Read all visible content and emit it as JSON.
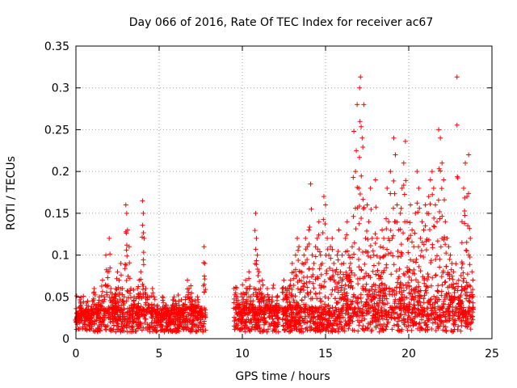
{
  "chart_data": {
    "type": "scatter",
    "title": "Day 066 of 2016, Rate Of TEC Index for receiver ac67",
    "xlabel": "GPS time / hours",
    "ylabel": "ROTI / TECUs",
    "xlim": [
      0,
      25
    ],
    "ylim": [
      0,
      0.35
    ],
    "xticks": [
      0,
      5,
      10,
      15,
      20,
      25
    ],
    "yticks": [
      0,
      0.05,
      0.1,
      0.15,
      0.2,
      0.25,
      0.3,
      0.35
    ],
    "grid": true,
    "marker": "+",
    "marker_color": "#ff0000",
    "series": [
      {
        "name": "ROTI",
        "x": [
          0.0,
          0.1,
          0.2,
          0.3,
          0.4,
          0.5,
          0.6,
          0.7,
          0.8,
          0.9,
          1.0,
          1.1,
          1.2,
          1.3,
          1.4,
          1.5,
          1.6,
          1.7,
          1.8,
          1.9,
          2.0,
          2.1,
          2.2,
          2.3,
          2.4,
          2.5,
          2.6,
          2.7,
          2.8,
          2.9,
          3.0,
          3.05,
          3.1,
          3.2,
          3.3,
          3.4,
          3.5,
          3.6,
          3.7,
          3.8,
          3.9,
          4.0,
          4.05,
          4.1,
          4.2,
          4.3,
          4.4,
          4.5,
          4.6,
          4.7,
          4.8,
          4.9,
          5.0,
          5.1,
          5.2,
          5.3,
          5.4,
          5.5,
          5.6,
          5.7,
          5.8,
          5.9,
          6.0,
          6.1,
          6.2,
          6.3,
          6.4,
          6.5,
          6.6,
          6.7,
          6.8,
          6.9,
          7.0,
          7.1,
          7.2,
          7.3,
          7.4,
          7.5,
          7.6,
          7.7,
          7.75,
          9.5,
          9.6,
          9.7,
          9.8,
          9.9,
          10.0,
          10.1,
          10.2,
          10.3,
          10.4,
          10.5,
          10.6,
          10.7,
          10.8,
          10.85,
          10.9,
          11.0,
          11.1,
          11.2,
          11.3,
          11.4,
          11.5,
          11.6,
          11.7,
          11.8,
          11.9,
          12.0,
          12.1,
          12.2,
          12.4,
          12.5,
          12.6,
          12.7,
          12.8,
          12.9,
          13.0,
          13.1,
          13.2,
          13.3,
          13.4,
          13.5,
          13.6,
          13.7,
          13.8,
          13.9,
          14.0,
          14.1,
          14.2,
          14.3,
          14.4,
          14.5,
          14.6,
          14.7,
          14.8,
          14.9,
          15.0,
          15.1,
          15.2,
          15.3,
          15.4,
          15.5,
          15.6,
          15.7,
          15.8,
          15.9,
          16.0,
          16.1,
          16.2,
          16.3,
          16.4,
          16.5,
          16.6,
          16.7,
          16.8,
          16.9,
          17.0,
          17.05,
          17.1,
          17.2,
          17.3,
          17.4,
          17.5,
          17.6,
          17.7,
          17.8,
          17.9,
          18.0,
          18.1,
          18.2,
          18.3,
          18.4,
          18.5,
          18.6,
          18.7,
          18.8,
          18.9,
          19.0,
          19.1,
          19.2,
          19.3,
          19.4,
          19.5,
          19.6,
          19.7,
          19.8,
          19.9,
          20.0,
          20.1,
          20.2,
          20.3,
          20.4,
          20.5,
          20.6,
          20.7,
          20.8,
          20.9,
          21.0,
          21.1,
          21.2,
          21.3,
          21.4,
          21.5,
          21.6,
          21.7,
          21.8,
          21.9,
          22.0,
          22.1,
          22.2,
          22.3,
          22.4,
          22.5,
          22.6,
          22.7,
          22.8,
          22.9,
          23.0,
          23.1,
          23.2,
          23.3,
          23.4,
          23.5,
          23.6,
          23.7,
          23.8
        ],
        "y": [
          0.02,
          0.03,
          0.025,
          0.04,
          0.03,
          0.02,
          0.035,
          0.045,
          0.03,
          0.02,
          0.03,
          0.06,
          0.04,
          0.03,
          0.05,
          0.04,
          0.07,
          0.05,
          0.1,
          0.08,
          0.12,
          0.06,
          0.04,
          0.05,
          0.06,
          0.08,
          0.07,
          0.09,
          0.06,
          0.05,
          0.16,
          0.15,
          0.13,
          0.11,
          0.06,
          0.04,
          0.05,
          0.03,
          0.06,
          0.07,
          0.08,
          0.165,
          0.15,
          0.12,
          0.06,
          0.05,
          0.04,
          0.03,
          0.06,
          0.05,
          0.03,
          0.04,
          0.03,
          0.02,
          0.05,
          0.03,
          0.04,
          0.035,
          0.02,
          0.03,
          0.04,
          0.05,
          0.045,
          0.03,
          0.04,
          0.035,
          0.03,
          0.04,
          0.05,
          0.07,
          0.06,
          0.05,
          0.045,
          0.04,
          0.04,
          0.05,
          0.03,
          0.035,
          0.03,
          0.11,
          0.09,
          0.06,
          0.055,
          0.05,
          0.04,
          0.03,
          0.05,
          0.04,
          0.07,
          0.06,
          0.08,
          0.05,
          0.04,
          0.06,
          0.15,
          0.12,
          0.1,
          0.08,
          0.06,
          0.07,
          0.05,
          0.04,
          0.06,
          0.05,
          0.04,
          0.05,
          0.03,
          0.04,
          0.05,
          0.04,
          0.06,
          0.07,
          0.06,
          0.05,
          0.06,
          0.07,
          0.09,
          0.08,
          0.1,
          0.12,
          0.11,
          0.08,
          0.09,
          0.1,
          0.12,
          0.11,
          0.13,
          0.185,
          0.1,
          0.09,
          0.11,
          0.12,
          0.14,
          0.1,
          0.09,
          0.17,
          0.16,
          0.12,
          0.1,
          0.11,
          0.12,
          0.09,
          0.08,
          0.1,
          0.13,
          0.08,
          0.1,
          0.09,
          0.12,
          0.14,
          0.1,
          0.09,
          0.11,
          0.248,
          0.2,
          0.28,
          0.18,
          0.3,
          0.313,
          0.24,
          0.28,
          0.12,
          0.16,
          0.14,
          0.18,
          0.12,
          0.1,
          0.19,
          0.12,
          0.09,
          0.11,
          0.13,
          0.12,
          0.1,
          0.18,
          0.14,
          0.2,
          0.12,
          0.24,
          0.22,
          0.16,
          0.13,
          0.15,
          0.18,
          0.21,
          0.236,
          0.14,
          0.12,
          0.16,
          0.13,
          0.11,
          0.15,
          0.2,
          0.18,
          0.12,
          0.14,
          0.13,
          0.16,
          0.15,
          0.17,
          0.19,
          0.2,
          0.18,
          0.16,
          0.14,
          0.25,
          0.24,
          0.21,
          0.19,
          0.14,
          0.12,
          0.11,
          0.1,
          0.09,
          0.08,
          0.06,
          0.313,
          0.07,
          0.05,
          0.14,
          0.18,
          0.21,
          0.17,
          0.22,
          0.12,
          0.08
        ]
      }
    ],
    "dense_band_note": "baseline",
    "segments": [
      [
        0.0,
        7.8
      ],
      [
        9.5,
        12.2
      ],
      [
        12.4,
        23.9
      ]
    ]
  }
}
